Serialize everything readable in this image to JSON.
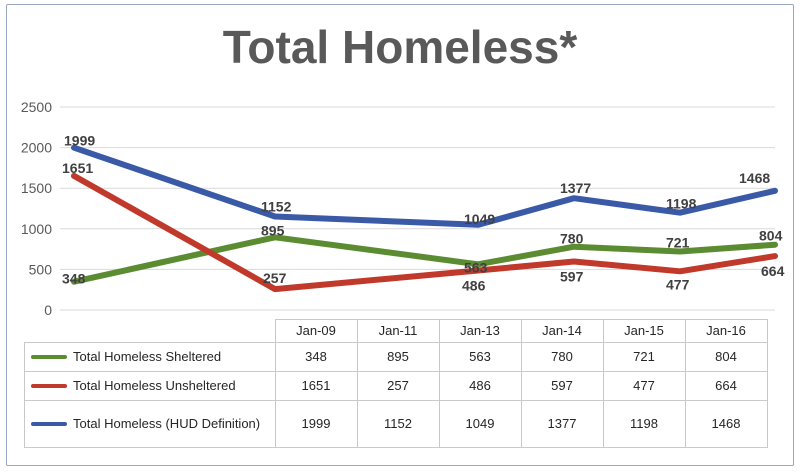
{
  "chart_data": {
    "type": "line",
    "title": "Total Homeless*",
    "categories": [
      "Jan-09",
      "Jan-11",
      "Jan-13",
      "Jan-14",
      "Jan-15",
      "Jan-16"
    ],
    "ylim": [
      0,
      2500
    ],
    "yticks": [
      0,
      500,
      1000,
      1500,
      2000,
      2500
    ],
    "grid": true,
    "legend_position": "bottom (data table)",
    "series": [
      {
        "name": "Total Homeless Sheltered",
        "color": "#5b8c32",
        "values": [
          348,
          895,
          563,
          780,
          721,
          804
        ]
      },
      {
        "name": "Total Homeless Unsheltered",
        "color": "#c0392b",
        "values": [
          1651,
          257,
          486,
          597,
          477,
          664
        ]
      },
      {
        "name": "Total Homeless (HUD Definition)",
        "color": "#3a5aa8",
        "values": [
          1999,
          1152,
          1049,
          1377,
          1198,
          1468
        ]
      }
    ]
  },
  "table": {
    "legend_labels": [
      "Total Homeless Sheltered",
      "Total Homeless Unsheltered",
      "Total Homeless (HUD Definition)"
    ]
  }
}
